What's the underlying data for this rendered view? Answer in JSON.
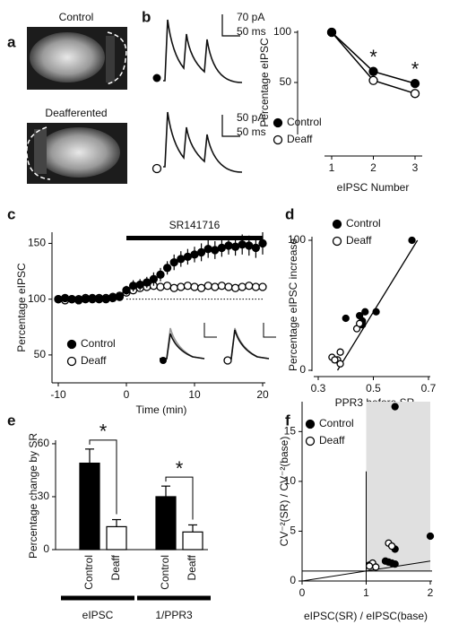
{
  "figure_a": {
    "panel_label": "a",
    "image_labels": [
      "Control",
      "Deafferented"
    ]
  },
  "figure_b_traces": {
    "panel_label": "b",
    "scale_bars": [
      {
        "current": "70 pA",
        "time": "50 ms"
      },
      {
        "current": "50 pA",
        "time": "50 ms"
      }
    ]
  },
  "chart_data": [
    {
      "type": "line",
      "connect": true,
      "x": [
        1,
        2,
        3
      ],
      "xlim": [
        1,
        3
      ],
      "xticks": [
        1,
        2,
        3
      ],
      "ylim": [
        0,
        100
      ],
      "yticks": [
        50,
        100
      ],
      "xlabel": "eIPSC Number",
      "ylabel": "Percentage eIPSC",
      "series": [
        {
          "name": "Control",
          "color": "#000000",
          "marker": "filled",
          "values": [
            100,
            61,
            49
          ],
          "errors": [
            0,
            4,
            4
          ]
        },
        {
          "name": "Deaff",
          "color": "#000000",
          "marker": "open",
          "values": [
            100,
            52,
            39
          ],
          "errors": [
            0,
            3,
            3
          ]
        }
      ],
      "annotations": [
        "*",
        "*"
      ]
    },
    {
      "type": "line",
      "connect": false,
      "panel_label": "c",
      "x": [
        -10,
        -9,
        -8,
        -7,
        -6,
        -5,
        -4,
        -3,
        -2,
        -1,
        0,
        1,
        2,
        3,
        4,
        5,
        6,
        7,
        8,
        9,
        10,
        11,
        12,
        13,
        14,
        15,
        16,
        17,
        18,
        19,
        20
      ],
      "xlim": [
        -10,
        20
      ],
      "xticks": [
        -10,
        0,
        10,
        20
      ],
      "ylim": [
        25,
        160
      ],
      "yticks": [
        50,
        100,
        150
      ],
      "xlabel": "Time (min)",
      "ylabel": "Percentage eIPSC",
      "series": [
        {
          "name": "Control",
          "color": "#000000",
          "marker": "filled",
          "values": [
            100,
            101,
            100,
            99,
            100,
            101,
            100,
            100,
            101,
            102,
            108,
            112,
            113,
            115,
            118,
            122,
            128,
            133,
            136,
            138,
            140,
            142,
            145,
            144,
            146,
            148,
            147,
            149,
            148,
            146,
            150
          ],
          "errors": [
            3,
            3,
            3,
            3,
            3,
            3,
            3,
            3,
            3,
            3,
            4,
            5,
            5,
            5,
            6,
            6,
            6,
            7,
            7,
            7,
            7,
            8,
            8,
            8,
            8,
            8,
            8,
            9,
            9,
            9,
            10
          ]
        },
        {
          "name": "Deaff",
          "color": "#000000",
          "marker": "open",
          "values": [
            100,
            99,
            100,
            100,
            101,
            100,
            101,
            101,
            102,
            103,
            106,
            108,
            110,
            111,
            112,
            111,
            112,
            110,
            111,
            112,
            111,
            110,
            112,
            111,
            112,
            111,
            110,
            111,
            112,
            111,
            111
          ],
          "errors": [
            2,
            2,
            2,
            2,
            2,
            2,
            2,
            2,
            2,
            2,
            3,
            3,
            3,
            3,
            3,
            3,
            3,
            3,
            3,
            3,
            3,
            3,
            3,
            3,
            3,
            3,
            3,
            3,
            3,
            3,
            3
          ]
        }
      ],
      "treatment": {
        "label": "SR141716",
        "x": [
          0,
          20
        ]
      },
      "reference_line": 100
    },
    {
      "type": "scatter",
      "panel_label": "d",
      "xlim": [
        0.3,
        0.7
      ],
      "xticks": [
        0.3,
        0.5,
        0.7
      ],
      "ylim": [
        0,
        100
      ],
      "yticks": [
        0,
        100
      ],
      "xlabel": "PPR3 before SR",
      "ylabel": "Percentage eIPSC increase",
      "series": [
        {
          "name": "Control",
          "color": "#000000",
          "marker": "filled",
          "x": [
            0.64,
            0.47,
            0.51,
            0.45,
            0.46,
            0.4,
            0.46
          ],
          "values": [
            100,
            45,
            45,
            42,
            38,
            40,
            35
          ]
        },
        {
          "name": "Deaff",
          "color": "#000000",
          "marker": "open",
          "x": [
            0.35,
            0.37,
            0.38,
            0.38,
            0.44,
            0.36,
            0.45
          ],
          "values": [
            10,
            8,
            14,
            5,
            32,
            8,
            36
          ]
        }
      ],
      "fit": {
        "x": [
          0.37,
          0.66
        ],
        "y": [
          0,
          100
        ]
      }
    },
    {
      "type": "bar",
      "panel_label": "e",
      "categories": [
        "Control",
        "Deaff",
        "Control",
        "Deaff"
      ],
      "groups": [
        "eIPSC",
        "1/PPR3"
      ],
      "values": [
        49,
        13,
        30,
        10
      ],
      "errors": [
        8,
        4,
        6,
        4
      ],
      "colors": [
        "#000000",
        "#ffffff",
        "#000000",
        "#ffffff"
      ],
      "ylim": [
        0,
        62
      ],
      "yticks": [
        0,
        30,
        60
      ],
      "ylabel": "Percentage change by SR",
      "annotations": [
        "*",
        "*"
      ]
    },
    {
      "type": "scatter",
      "panel_label": "f",
      "xlim": [
        0,
        2
      ],
      "xticks": [
        0,
        1,
        2
      ],
      "ylim": [
        0,
        18
      ],
      "yticks": [
        0,
        5,
        10,
        15
      ],
      "xlabel": "eIPSC(SR) / eIPSC(base)",
      "ylabel": "CV⁻²(SR) / CV⁻²(base)",
      "series": [
        {
          "name": "Control",
          "color": "#000000",
          "marker": "filled",
          "x": [
            1.45,
            2.0,
            1.45,
            1.3,
            1.4,
            1.45,
            1.35
          ],
          "values": [
            17.5,
            4.5,
            3.2,
            2.0,
            1.8,
            1.7,
            1.9
          ]
        },
        {
          "name": "Deaff",
          "color": "#000000",
          "marker": "open",
          "x": [
            1.35,
            1.4,
            1.05,
            1.1,
            1.15,
            1.05
          ],
          "values": [
            3.8,
            3.5,
            1.6,
            1.8,
            1.4,
            1.5
          ]
        }
      ],
      "shade": {
        "x": [
          1,
          2
        ],
        "y": [
          1,
          18
        ]
      },
      "hline": 1,
      "vline": {
        "x": 1,
        "y": [
          0,
          11
        ]
      },
      "diagonal": {
        "x": [
          0,
          2
        ],
        "y": [
          0,
          2
        ]
      }
    }
  ]
}
